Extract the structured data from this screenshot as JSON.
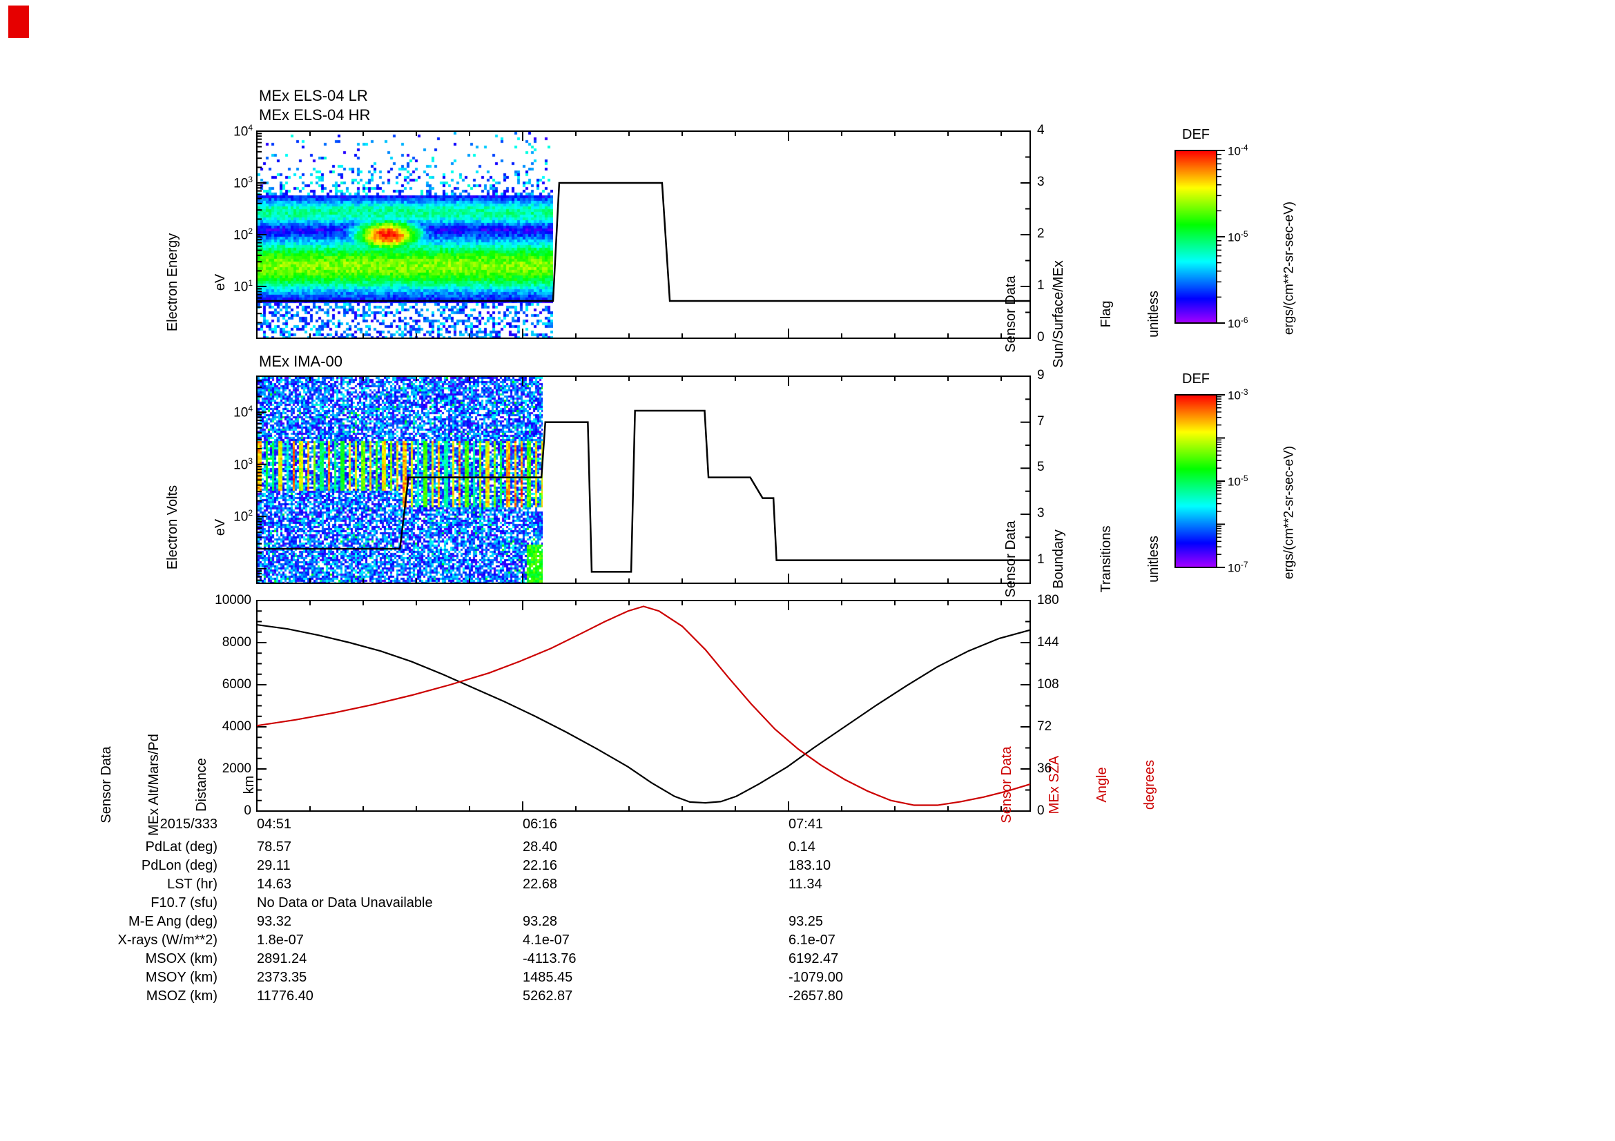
{
  "decorations": {
    "corner_marker_color": "#e60000"
  },
  "colorbars": [
    {
      "title": "DEF",
      "tick_labels": [
        "10^-4",
        "10^-5",
        "10^-6"
      ],
      "decades": 2,
      "unit": "ergs/(cm**2-sr-sec-eV)"
    },
    {
      "title": "DEF",
      "tick_labels": [
        "10^-3",
        "10^-5",
        "10^-7"
      ],
      "decades": 4,
      "unit": "ergs/(cm**2-sr-sec-eV)"
    }
  ],
  "table": {
    "date_label": "2015/333",
    "time_ticks": [
      "04:51",
      "06:16",
      "07:41"
    ],
    "rows": [
      {
        "label": "PdLat (deg)",
        "values": [
          "78.57",
          "28.40",
          "0.14"
        ],
        "span": false
      },
      {
        "label": "PdLon (deg)",
        "values": [
          "29.11",
          "22.16",
          "183.10"
        ],
        "span": false
      },
      {
        "label": "LST (hr)",
        "values": [
          "14.63",
          "22.68",
          "11.34"
        ],
        "span": false
      },
      {
        "label": "F10.7 (sfu)",
        "values": [
          "No Data or Data Unavailable"
        ],
        "span": true
      },
      {
        "label": "M-E Ang (deg)",
        "values": [
          "93.32",
          "93.28",
          "93.25"
        ],
        "span": false
      },
      {
        "label": "X-rays (W/m**2)",
        "values": [
          "1.8e-07",
          "4.1e-07",
          "6.1e-07"
        ],
        "span": false
      },
      {
        "label": "MSOX (km)",
        "values": [
          "2891.24",
          "-4113.76",
          "6192.47"
        ],
        "span": false
      },
      {
        "label": "MSOY (km)",
        "values": [
          "2373.35",
          "1485.45",
          "-1079.00"
        ],
        "span": false
      },
      {
        "label": "MSOZ (km)",
        "values": [
          "11776.40",
          "5262.87",
          "-2657.80"
        ],
        "span": false
      }
    ]
  },
  "chart_data": [
    {
      "id": "els",
      "type": "heatmap",
      "title_lines": [
        "MEx ELS-04 LR",
        "MEx ELS-04 HR"
      ],
      "ylabel_lines": [
        "Electron Energy",
        "eV"
      ],
      "yscale": "log",
      "ytick_labels": [
        "10^1",
        "10^2",
        "10^3",
        "10^4"
      ],
      "ylim_exp": [
        0,
        4
      ],
      "right_axis": {
        "label_lines": [
          "Sensor Data",
          "Sun/Surface/MEx",
          "Flag",
          "unitless"
        ],
        "lim": [
          0,
          4
        ],
        "ticks": [
          0,
          1,
          2,
          3,
          4
        ]
      },
      "overlay_line": {
        "name": "sun-surface-mex-flag",
        "points": [
          [
            0,
            0.72
          ],
          [
            0.383,
            0.72
          ],
          [
            0.391,
            3
          ],
          [
            0.524,
            3
          ],
          [
            0.534,
            0.72
          ],
          [
            1,
            0.72
          ]
        ]
      },
      "spectrogram": {
        "t_extent": [
          0,
          0.382
        ],
        "e_top": 4.0,
        "e_bottom": 0.0,
        "bands": [
          {
            "e_center": 1.4,
            "e_sigma": 0.55,
            "amp": 0.68
          },
          {
            "e_center": 2.45,
            "e_sigma": 0.3,
            "amp": 0.45
          }
        ],
        "blob": {
          "t_center": 0.44,
          "t_sigma": 0.12,
          "e_center": 2.0,
          "e_sigma": 0.33,
          "amp": 1.0
        },
        "speckle_above_e": 2.8,
        "speckle_below_e": 0.7,
        "seed": 11
      }
    },
    {
      "id": "ima",
      "type": "heatmap",
      "title_lines": [
        "MEx IMA-00"
      ],
      "ylabel_lines": [
        "Electron Volts",
        "eV"
      ],
      "yscale": "log",
      "ytick_labels": [
        "10^2",
        "10^3",
        "10^4"
      ],
      "ylim_exp": [
        0.72,
        4.69
      ],
      "right_axis": {
        "label_lines": [
          "Sensor Data",
          "Boundary",
          "Transitions",
          "unitless"
        ],
        "lim": [
          0,
          9
        ],
        "ticks": [
          1,
          3,
          5,
          7,
          9
        ]
      },
      "overlay_line": {
        "name": "boundary-transitions",
        "points": [
          [
            0,
            1.5
          ],
          [
            0.185,
            1.5
          ],
          [
            0.196,
            4.6
          ],
          [
            0.368,
            4.6
          ],
          [
            0.373,
            7
          ],
          [
            0.428,
            7
          ],
          [
            0.433,
            0.5
          ],
          [
            0.484,
            0.5
          ],
          [
            0.489,
            7.5
          ],
          [
            0.579,
            7.5
          ],
          [
            0.584,
            4.6
          ],
          [
            0.638,
            4.6
          ],
          [
            0.654,
            3.7
          ],
          [
            0.668,
            3.7
          ],
          [
            0.672,
            1
          ],
          [
            1,
            1
          ]
        ]
      },
      "spectrogram": {
        "t_extent": [
          0,
          0.369
        ],
        "e_top": 4.69,
        "e_bottom": 0.72,
        "stripe_period": 10,
        "stripe_width": 4,
        "stripe_e_lo": 2.5,
        "stripe_e_lo_late": 2.2,
        "stripe_e_hi": 3.45,
        "stripe_extend_after_t": 0.5,
        "corner_blob_t": 0.945,
        "corner_blob_e": 1.45,
        "seed": 23
      }
    },
    {
      "id": "ephemeris",
      "type": "line",
      "x_date": "2015/333",
      "x_ticks": [
        "04:51",
        "06:16",
        "07:41"
      ],
      "left_axis": {
        "label_lines": [
          "Sensor Data",
          "MEx Alt/Mars/Pd",
          "Distance",
          "km"
        ],
        "lim": [
          0,
          10000
        ],
        "ticks": [
          0,
          2000,
          4000,
          6000,
          8000,
          10000
        ]
      },
      "right_axis": {
        "label_lines": [
          "Sensor Data",
          "MEx SZA",
          "Angle",
          "degrees"
        ],
        "lim": [
          0,
          180
        ],
        "ticks": [
          0,
          36,
          72,
          108,
          144,
          180
        ],
        "color": "#cc0000"
      },
      "series": [
        {
          "name": "mex-altitude-km",
          "axis": "left",
          "color": "#000000",
          "points": [
            [
              0,
              8850
            ],
            [
              0.04,
              8650
            ],
            [
              0.08,
              8350
            ],
            [
              0.12,
              8000
            ],
            [
              0.16,
              7600
            ],
            [
              0.2,
              7100
            ],
            [
              0.24,
              6500
            ],
            [
              0.28,
              5850
            ],
            [
              0.32,
              5200
            ],
            [
              0.36,
              4500
            ],
            [
              0.4,
              3750
            ],
            [
              0.44,
              2950
            ],
            [
              0.48,
              2100
            ],
            [
              0.51,
              1350
            ],
            [
              0.54,
              700
            ],
            [
              0.56,
              430
            ],
            [
              0.58,
              390
            ],
            [
              0.6,
              450
            ],
            [
              0.62,
              700
            ],
            [
              0.65,
              1300
            ],
            [
              0.686,
              2100
            ],
            [
              0.72,
              3000
            ],
            [
              0.76,
              4000
            ],
            [
              0.8,
              5000
            ],
            [
              0.84,
              5950
            ],
            [
              0.88,
              6850
            ],
            [
              0.92,
              7600
            ],
            [
              0.96,
              8200
            ],
            [
              1,
              8600
            ]
          ]
        },
        {
          "name": "mex-sza-deg",
          "axis": "right",
          "color": "#cc0000",
          "points": [
            [
              0,
              73
            ],
            [
              0.05,
              78
            ],
            [
              0.1,
              84
            ],
            [
              0.15,
              91
            ],
            [
              0.2,
              99
            ],
            [
              0.25,
              108
            ],
            [
              0.3,
              118
            ],
            [
              0.34,
              128
            ],
            [
              0.38,
              139
            ],
            [
              0.42,
              152
            ],
            [
              0.45,
              162
            ],
            [
              0.48,
              171
            ],
            [
              0.5,
              175
            ],
            [
              0.52,
              171
            ],
            [
              0.55,
              158
            ],
            [
              0.58,
              138
            ],
            [
              0.61,
              114
            ],
            [
              0.64,
              91
            ],
            [
              0.67,
              70
            ],
            [
              0.7,
              53
            ],
            [
              0.73,
              39
            ],
            [
              0.76,
              27
            ],
            [
              0.79,
              17
            ],
            [
              0.82,
              9
            ],
            [
              0.85,
              5
            ],
            [
              0.88,
              5
            ],
            [
              0.91,
              8
            ],
            [
              0.94,
              12
            ],
            [
              0.97,
              17
            ],
            [
              1,
              23
            ]
          ]
        }
      ]
    }
  ]
}
